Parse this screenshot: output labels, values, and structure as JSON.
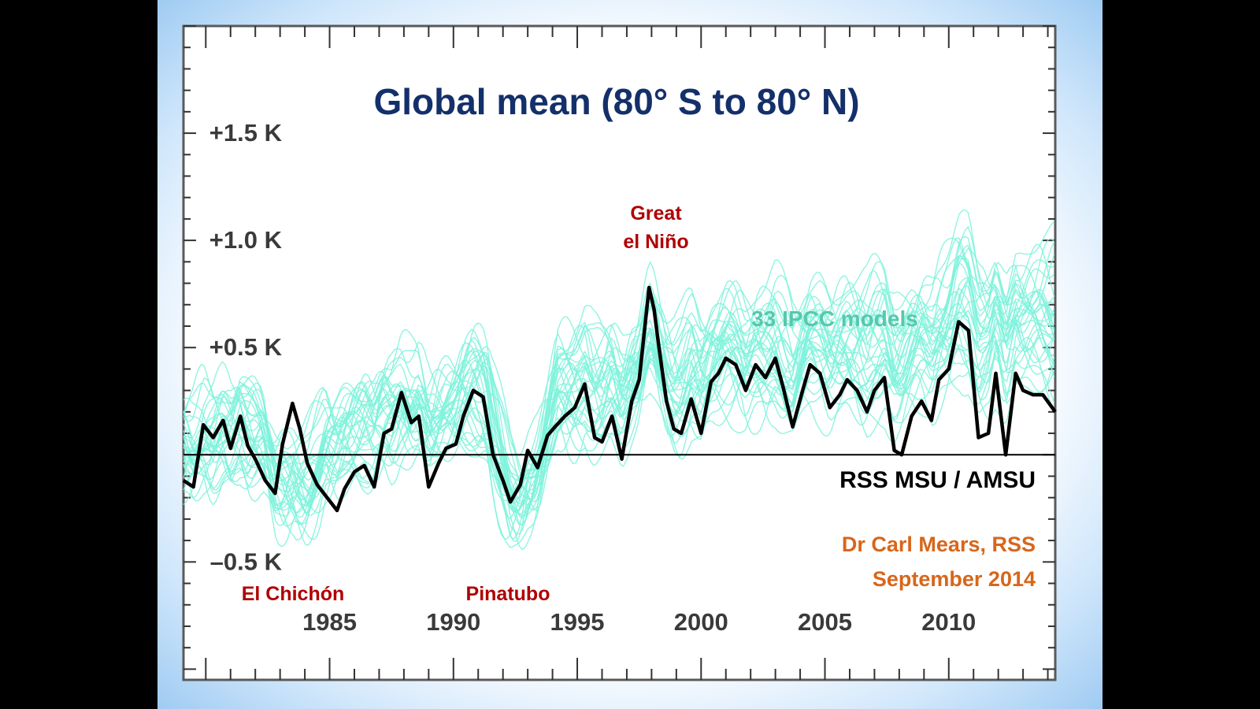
{
  "chart_data": {
    "type": "line",
    "title": "Global mean (80° S to 80° N)",
    "xlabel": "",
    "ylabel": "",
    "xlim": [
      1979.1,
      2014.3
    ],
    "ylim": [
      -1.05,
      2.0
    ],
    "y_ticks": [
      {
        "value": 1.5,
        "label": "+1.5 K"
      },
      {
        "value": 1.0,
        "label": "+1.0 K"
      },
      {
        "value": 0.5,
        "label": "+0.5 K"
      },
      {
        "value": -0.5,
        "label": "–0.5 K"
      }
    ],
    "x_ticks": [
      {
        "value": 1985,
        "label": "1985"
      },
      {
        "value": 1990,
        "label": "1990"
      },
      {
        "value": 1995,
        "label": "1995"
      },
      {
        "value": 2000,
        "label": "2000"
      },
      {
        "value": 2005,
        "label": "2005"
      },
      {
        "value": 2010,
        "label": "2010"
      }
    ],
    "zero_line": 0,
    "grid": false,
    "series": [
      {
        "name": "RSS MSU / AMSU",
        "color": "#000000",
        "x": [
          1979.1,
          1979.5,
          1979.9,
          1980.3,
          1980.7,
          1981.0,
          1981.4,
          1981.7,
          1982.0,
          1982.4,
          1982.8,
          1983.1,
          1983.5,
          1983.8,
          1984.1,
          1984.5,
          1984.9,
          1985.3,
          1985.6,
          1986.0,
          1986.4,
          1986.8,
          1987.2,
          1987.5,
          1987.9,
          1988.3,
          1988.6,
          1989.0,
          1989.4,
          1989.7,
          1990.1,
          1990.4,
          1990.8,
          1991.2,
          1991.6,
          1992.0,
          1992.3,
          1992.7,
          1993.0,
          1993.4,
          1993.8,
          1994.1,
          1994.5,
          1994.9,
          1995.3,
          1995.7,
          1996.0,
          1996.4,
          1996.8,
          1997.2,
          1997.5,
          1997.9,
          1998.1,
          1998.3,
          1998.6,
          1998.9,
          1999.2,
          1999.6,
          2000.0,
          2000.4,
          2000.7,
          2001.0,
          2001.4,
          2001.8,
          2002.2,
          2002.6,
          2003.0,
          2003.3,
          2003.7,
          2004.1,
          2004.4,
          2004.8,
          2005.2,
          2005.6,
          2005.9,
          2006.3,
          2006.7,
          2007.0,
          2007.4,
          2007.8,
          2008.1,
          2008.5,
          2008.9,
          2009.3,
          2009.6,
          2010.0,
          2010.4,
          2010.8,
          2011.2,
          2011.6,
          2011.9,
          2012.3,
          2012.7,
          2013.0,
          2013.4,
          2013.8,
          2014.3
        ],
        "values": [
          -0.12,
          -0.15,
          0.14,
          0.08,
          0.16,
          0.03,
          0.18,
          0.04,
          -0.02,
          -0.12,
          -0.18,
          0.05,
          0.24,
          0.12,
          -0.04,
          -0.14,
          -0.2,
          -0.26,
          -0.16,
          -0.08,
          -0.05,
          -0.15,
          0.1,
          0.12,
          0.29,
          0.15,
          0.18,
          -0.15,
          -0.04,
          0.03,
          0.05,
          0.18,
          0.3,
          0.27,
          0.0,
          -0.12,
          -0.22,
          -0.14,
          0.02,
          -0.06,
          0.09,
          0.13,
          0.18,
          0.22,
          0.33,
          0.08,
          0.06,
          0.18,
          -0.02,
          0.25,
          0.35,
          0.78,
          0.68,
          0.5,
          0.25,
          0.12,
          0.1,
          0.26,
          0.1,
          0.34,
          0.38,
          0.45,
          0.42,
          0.3,
          0.42,
          0.36,
          0.45,
          0.32,
          0.13,
          0.3,
          0.42,
          0.38,
          0.22,
          0.28,
          0.35,
          0.3,
          0.2,
          0.3,
          0.36,
          0.02,
          0.0,
          0.18,
          0.25,
          0.16,
          0.35,
          0.4,
          0.62,
          0.58,
          0.08,
          0.1,
          0.38,
          0.0,
          0.38,
          0.3,
          0.28,
          0.28,
          0.2
        ]
      },
      {
        "name": "33 IPCC models",
        "color": "#7ef2dc",
        "count": 33
      }
    ],
    "annotations": [
      {
        "text": "El Chichón",
        "color": "#b00000"
      },
      {
        "text": "Pinatubo",
        "color": "#b00000"
      },
      {
        "text": "Great",
        "color": "#b00000"
      },
      {
        "text": "el Niño",
        "color": "#b00000"
      },
      {
        "text": "33 IPCC models",
        "color": "#58c8ad"
      },
      {
        "text": "RSS MSU / AMSU",
        "color": "#000000"
      },
      {
        "text": "Dr Carl Mears, RSS",
        "color": "#d8661a"
      },
      {
        "text": "September 2014",
        "color": "#d8661a"
      }
    ]
  }
}
